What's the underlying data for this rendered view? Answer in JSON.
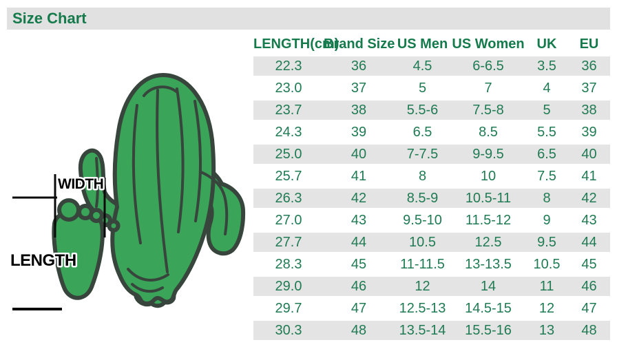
{
  "header": {
    "title": "Size Chart"
  },
  "diagram": {
    "width_label": "WIDTH",
    "length_label": "LENGTH"
  },
  "chart_data": {
    "type": "table",
    "title": "Size Chart",
    "columns": [
      "LENGTH(cm)",
      "Brand Size",
      "US Men",
      "US Women",
      "UK",
      "EU"
    ],
    "rows": [
      [
        "22.3",
        "36",
        "4.5",
        "6-6.5",
        "3.5",
        "36"
      ],
      [
        "23.0",
        "37",
        "5",
        "7",
        "4",
        "37"
      ],
      [
        "23.7",
        "38",
        "5.5-6",
        "7.5-8",
        "5",
        "38"
      ],
      [
        "24.3",
        "39",
        "6.5",
        "8.5",
        "5.5",
        "39"
      ],
      [
        "25.0",
        "40",
        "7-7.5",
        "9-9.5",
        "6.5",
        "40"
      ],
      [
        "25.7",
        "41",
        "8",
        "10",
        "7.5",
        "41"
      ],
      [
        "26.3",
        "42",
        "8.5-9",
        "10.5-11",
        "8",
        "42"
      ],
      [
        "27.0",
        "43",
        "9.5-10",
        "11.5-12",
        "9",
        "43"
      ],
      [
        "27.7",
        "44",
        "10.5",
        "12.5",
        "9.5",
        "44"
      ],
      [
        "28.3",
        "45",
        "11-11.5",
        "13-13.5",
        "10.5",
        "45"
      ],
      [
        "29.0",
        "46",
        "12",
        "14",
        "11",
        "46"
      ],
      [
        "29.7",
        "47",
        "12.5-13",
        "14.5-15",
        "12",
        "47"
      ],
      [
        "30.3",
        "48",
        "13.5-14",
        "15.5-16",
        "13",
        "48"
      ]
    ],
    "row_striping": "odd rows shaded gray, starting with first data row"
  },
  "colors": {
    "title_bar_bg": "#e2e1e1",
    "row_alt_bg": "#e5e4e4",
    "header_text": "#157a4c",
    "table_text": "#1f7b53",
    "cactus_fill": "#3aa458",
    "cactus_outline": "#37453d",
    "measure_line": "#0a0a0a"
  }
}
